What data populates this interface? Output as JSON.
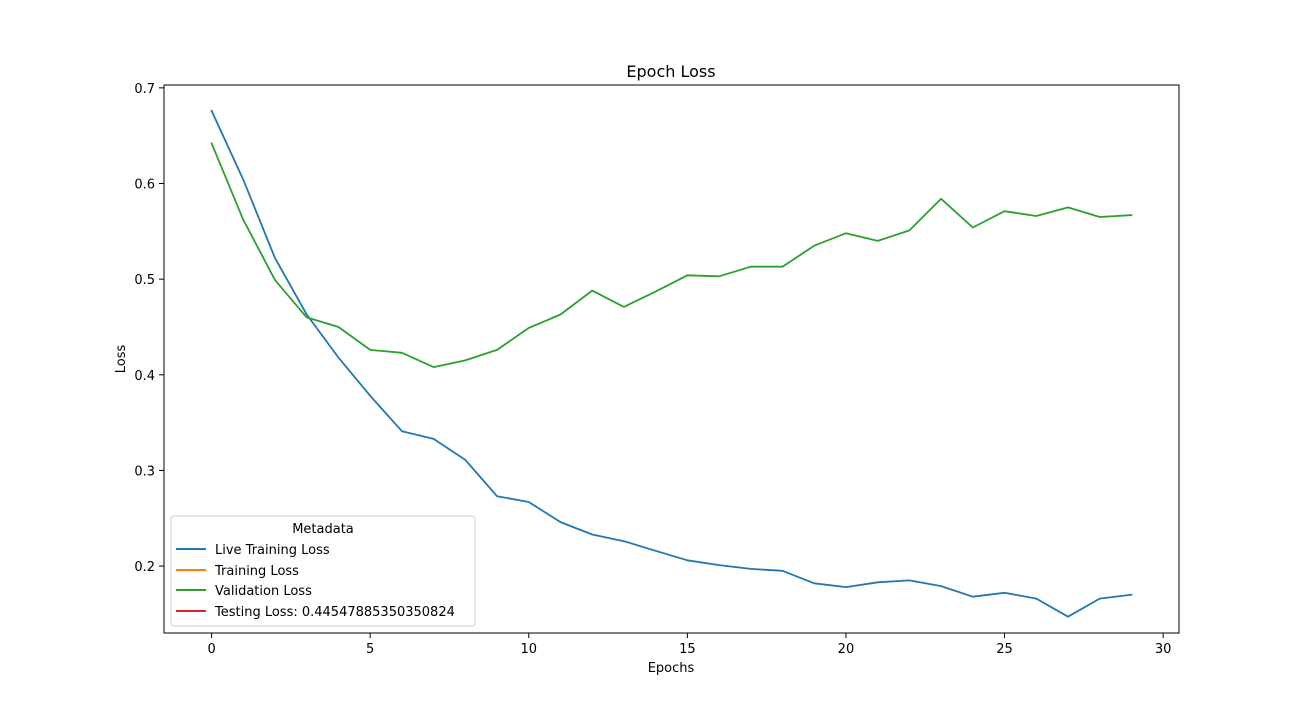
{
  "chart_data": {
    "type": "line",
    "title": "Epoch Loss",
    "xlabel": "Epochs",
    "ylabel": "Loss",
    "xlim": [
      -1.5,
      30.5
    ],
    "ylim": [
      0.13,
      0.703
    ],
    "xticks": [
      0,
      5,
      10,
      15,
      20,
      25,
      30
    ],
    "yticks": [
      0.2,
      0.3,
      0.4,
      0.5,
      0.6,
      0.7
    ],
    "grid": false,
    "legend": {
      "title": "Metadata",
      "placement": "lower-left",
      "entries": [
        {
          "label": "Live Training Loss",
          "color": "#1f77b4"
        },
        {
          "label": "Training Loss",
          "color": "#ff7f0e"
        },
        {
          "label": "Validation Loss",
          "color": "#2ca02c"
        },
        {
          "label": "Testing Loss: 0.44547885350350824",
          "color": "#d62728"
        }
      ]
    },
    "x": [
      0,
      1,
      2,
      3,
      4,
      5,
      6,
      7,
      8,
      9,
      10,
      11,
      12,
      13,
      14,
      15,
      16,
      17,
      18,
      19,
      20,
      21,
      22,
      23,
      24,
      25,
      26,
      27,
      28,
      29
    ],
    "series": [
      {
        "name": "Live Training Loss",
        "color": "#1f77b4",
        "values": [
          0.676,
          0.604,
          0.522,
          0.463,
          0.418,
          0.378,
          0.341,
          0.333,
          0.311,
          0.273,
          0.267,
          0.246,
          0.233,
          0.226,
          0.216,
          0.206,
          0.201,
          0.197,
          0.195,
          0.182,
          0.178,
          0.183,
          0.185,
          0.179,
          0.168,
          0.172,
          0.166,
          0.147,
          0.166,
          0.17
        ]
      },
      {
        "name": "Validation Loss",
        "color": "#2ca02c",
        "values": [
          0.642,
          0.562,
          0.499,
          0.46,
          0.45,
          0.426,
          0.423,
          0.408,
          0.415,
          0.426,
          0.449,
          0.463,
          0.488,
          0.471,
          0.487,
          0.504,
          0.503,
          0.513,
          0.513,
          0.535,
          0.548,
          0.54,
          0.551,
          0.584,
          0.554,
          0.571,
          0.566,
          0.575,
          0.565,
          0.567
        ]
      }
    ]
  }
}
